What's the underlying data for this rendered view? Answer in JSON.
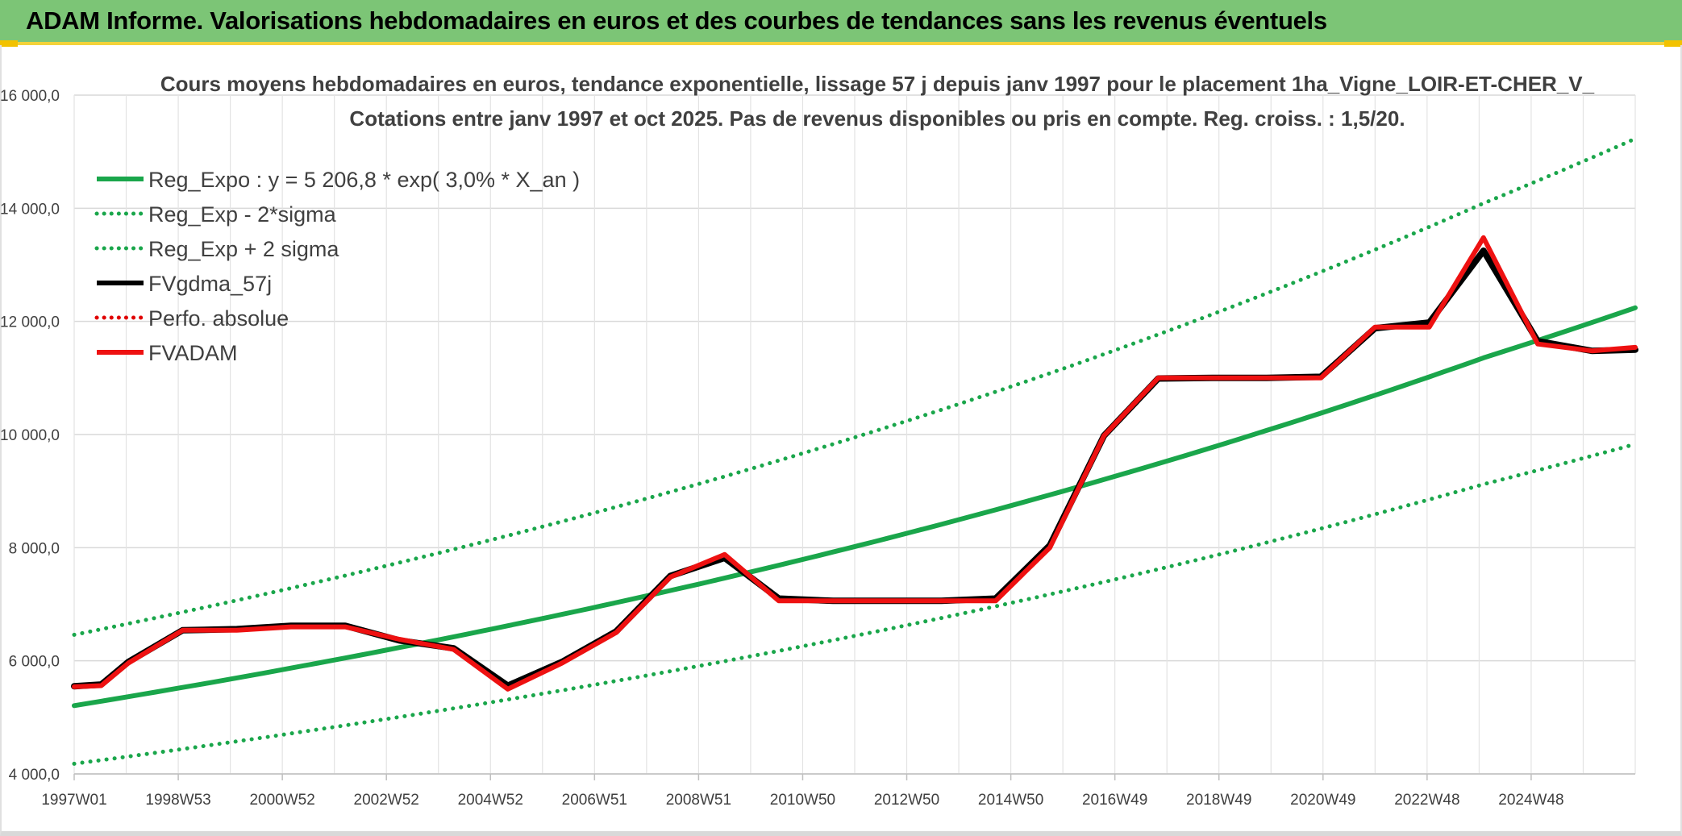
{
  "banner": {
    "title": "ADAM Informe. Valorisations hebdomadaires en euros et des courbes de tendances sans les revenus éventuels"
  },
  "chart_data": {
    "type": "line",
    "title": "Cours moyens hebdomadaires en euros, tendance exponentielle, lissage 57 j depuis janv 1997 pour le placement 1ha_Vigne_LOIR-ET-CHER_V_",
    "subtitle": "Cotations entre janv 1997 et oct 2025. Pas de revenus disponibles ou pris en compte. Reg. croiss. : 1,5/20.",
    "xlabel": "",
    "ylabel": "",
    "ylim": [
      4000,
      16000
    ],
    "yticks": [
      "4 000,0",
      "6 000,0",
      "8 000,0",
      "10 000,0",
      "12 000,0",
      "14 000,0",
      "16 000,0"
    ],
    "ytick_values": [
      4000,
      6000,
      8000,
      10000,
      12000,
      14000,
      16000
    ],
    "xlim": [
      1997.0,
      2025.8
    ],
    "xticks": [
      "1997W01",
      "1998W53",
      "2000W52",
      "2002W52",
      "2004W52",
      "2006W51",
      "2008W51",
      "2010W50",
      "2012W50",
      "2014W50",
      "2016W49",
      "2018W49",
      "2020W49",
      "2022W48",
      "2024W48"
    ],
    "grid": true,
    "legend_position": "top-left",
    "series": [
      {
        "name": "Reg_Expo : y = 5 206,8 * exp( 3,0% *  X_an )",
        "style": "solid",
        "color": "#1aa64b",
        "x": [
          1997,
          1999,
          2001,
          2003,
          2005,
          2007,
          2009,
          2011,
          2013,
          2015,
          2017,
          2019,
          2021,
          2023,
          2025.8
        ],
        "values": [
          5207,
          5529,
          5871,
          6234,
          6619,
          7028,
          7462,
          7923,
          8413,
          8933,
          9485,
          10072,
          10694,
          11355,
          12240
        ]
      },
      {
        "name": "Reg_Exp - 2*sigma",
        "style": "dotted",
        "color": "#1aa64b",
        "x": [
          1997,
          1999,
          2001,
          2003,
          2005,
          2007,
          2009,
          2011,
          2013,
          2015,
          2017,
          2019,
          2021,
          2023,
          2025.8
        ],
        "values": [
          4180,
          4440,
          4715,
          5006,
          5315,
          5644,
          5993,
          6363,
          6757,
          7175,
          7618,
          8090,
          8590,
          9121,
          9830
        ]
      },
      {
        "name": "Reg_Exp + 2 sigma",
        "style": "dotted",
        "color": "#1aa64b",
        "x": [
          1997,
          1999,
          2001,
          2003,
          2005,
          2007,
          2009,
          2011,
          2013,
          2015,
          2017,
          2019,
          2021,
          2023,
          2025.8
        ],
        "values": [
          6460,
          6860,
          7284,
          7735,
          8213,
          8720,
          9259,
          9831,
          10438,
          11083,
          11768,
          12496,
          13268,
          14088,
          15230
        ]
      },
      {
        "name": "FVgdma_57j",
        "style": "solid",
        "color": "#000000",
        "x": [
          1997.0,
          1997.5,
          1998.0,
          1999.0,
          2000.0,
          2001.0,
          2002.0,
          2003.0,
          2004.0,
          2005.0,
          2006.0,
          2007.0,
          2008.0,
          2009.0,
          2010.0,
          2011.0,
          2012.0,
          2013.0,
          2014.0,
          2015.0,
          2016.0,
          2017.0,
          2018.0,
          2019.0,
          2020.0,
          2021.0,
          2022.0,
          2023.0,
          2024.0,
          2025.0,
          2025.8
        ],
        "values": [
          5550,
          5580,
          5980,
          6540,
          6560,
          6620,
          6620,
          6360,
          6220,
          5560,
          5980,
          6520,
          7500,
          7820,
          7100,
          7060,
          7060,
          7060,
          7100,
          8040,
          9980,
          10990,
          11000,
          11000,
          11020,
          11880,
          11980,
          13250,
          11650,
          11480,
          11500
        ]
      },
      {
        "name": "Perfo. absolue",
        "style": "dotted",
        "color": "#e00000",
        "x": [],
        "values": []
      },
      {
        "name": "FVADAM",
        "style": "solid",
        "color": "#ee1111",
        "x": [
          1997.0,
          1997.5,
          1998.0,
          1999.0,
          2000.0,
          2001.0,
          2002.0,
          2003.0,
          2004.0,
          2005.0,
          2006.0,
          2007.0,
          2008.0,
          2009.0,
          2010.0,
          2011.0,
          2012.0,
          2013.0,
          2014.0,
          2015.0,
          2016.0,
          2017.0,
          2018.0,
          2019.0,
          2020.0,
          2021.0,
          2022.0,
          2023.0,
          2024.0,
          2025.0,
          2025.8
        ],
        "values": [
          5540,
          5560,
          5960,
          6540,
          6540,
          6600,
          6600,
          6380,
          6200,
          5500,
          5960,
          6500,
          7480,
          7880,
          7060,
          7060,
          7060,
          7060,
          7060,
          8000,
          9980,
          11000,
          11000,
          11000,
          11000,
          11900,
          11900,
          13480,
          11600,
          11480,
          11540
        ]
      }
    ]
  }
}
